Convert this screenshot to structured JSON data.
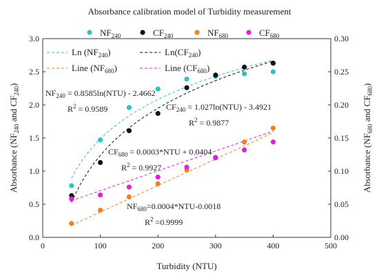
{
  "chart_data": {
    "type": "scatter",
    "title": "Absorbance calibration model of Turbidity measurement",
    "xlabel": "Turbidity (NTU)",
    "ylabel_left": "Absorbance (NF240 and CF240)",
    "ylabel_right": "Absorbance (NF680 and CF680)",
    "xlim": [
      0,
      500
    ],
    "ylim_left": [
      0.0,
      3.0
    ],
    "ylim_right": [
      0.0,
      0.3
    ],
    "x_ticks": [
      "0",
      "100",
      "200",
      "300",
      "400",
      "500"
    ],
    "y_left_ticks": [
      "0.0",
      "0.5",
      "1.0",
      "1.5",
      "2.0",
      "2.5",
      "3.0"
    ],
    "y_right_ticks": [
      "0.00",
      "0.05",
      "0.10",
      "0.15",
      "0.20",
      "0.25",
      "0.30"
    ],
    "grid": false,
    "legend_position": "top",
    "x": [
      50,
      100,
      150,
      200,
      250,
      300,
      350,
      400
    ],
    "series": [
      {
        "name": "NF240",
        "axis": "left",
        "color": "#2ec4c4",
        "values": [
          0.78,
          1.47,
          1.96,
          2.24,
          2.39,
          2.43,
          2.47,
          2.5
        ]
      },
      {
        "name": "CF240",
        "axis": "left",
        "color": "#111111",
        "values": [
          0.63,
          1.13,
          1.61,
          1.87,
          2.26,
          2.45,
          2.57,
          2.63
        ]
      },
      {
        "name": "NF680",
        "axis": "right",
        "color": "#f0821e",
        "values": [
          0.021,
          0.041,
          0.061,
          0.081,
          0.102,
          0.121,
          0.144,
          0.165
        ]
      },
      {
        "name": "CF680",
        "axis": "right",
        "color": "#e020e0",
        "values": [
          0.058,
          0.064,
          0.076,
          0.091,
          0.106,
          0.12,
          0.132,
          0.144
        ]
      }
    ],
    "fits": [
      {
        "name": "Ln (NF240)",
        "series": "NF240",
        "kind": "ln",
        "a": 0.8585,
        "b": -2.4662,
        "axis": "left",
        "color": "#2ec4c4"
      },
      {
        "name": "Ln(CF240)",
        "series": "CF240",
        "kind": "ln",
        "a": 1.027,
        "b": -3.4921,
        "axis": "left",
        "color": "#111111"
      },
      {
        "name": "Line (NF680)",
        "series": "NF680",
        "kind": "linear",
        "a": 0.0004,
        "b": -0.0018,
        "axis": "right",
        "color": "#f0821e"
      },
      {
        "name": "Line (CF680)",
        "series": "CF680",
        "kind": "linear",
        "a": 0.0003,
        "b": 0.0404,
        "axis": "right",
        "color": "#e020e0"
      }
    ],
    "annotations": [
      {
        "id": "nf240",
        "sub": "240",
        "prefix": "NF",
        "eq": " = 0.8585ln(NTU) - 2.4662",
        "r2": "= 0.9589"
      },
      {
        "id": "cf240",
        "sub": "240",
        "prefix": "CF",
        "eq": " = 1.027ln(NTU) - 3.4921",
        "r2": "= 0.9877"
      },
      {
        "id": "cf680",
        "sub": "680",
        "prefix": "CF",
        "eq": " = 0.0003*NTU + 0.0404",
        "r2": "= 0.9927"
      },
      {
        "id": "nf680",
        "sub": "680",
        "prefix": "NF",
        "eq": "=0.0004*NTU-0.0018",
        "r2": "=0.9999"
      }
    ]
  }
}
